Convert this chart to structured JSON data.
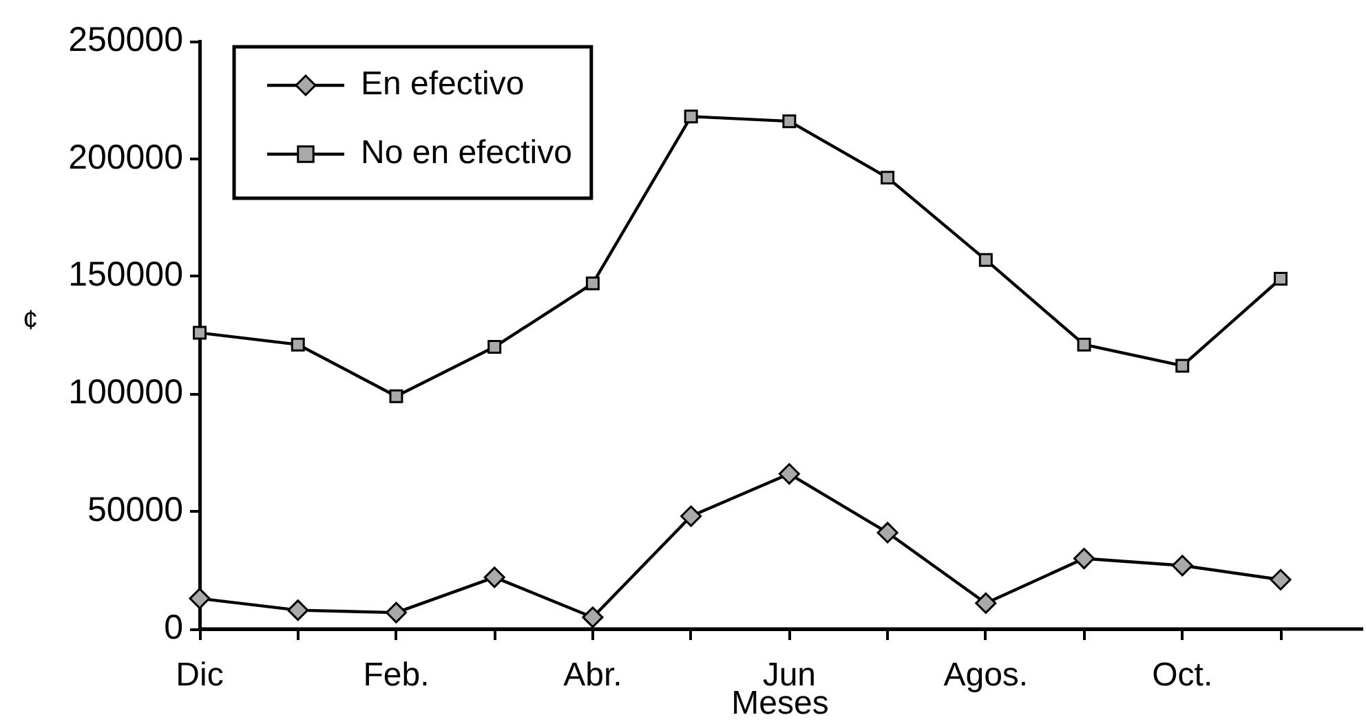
{
  "chart_data": {
    "type": "line",
    "xlabel": "Meses",
    "ylabel": "¢",
    "categories": [
      "Dic",
      null,
      "Feb.",
      null,
      "Abr.",
      null,
      "Jun",
      null,
      "Agos.",
      null,
      "Oct.",
      null
    ],
    "series": [
      {
        "name": "En efectivo",
        "color": "#000000",
        "marker": "diamond",
        "values": [
          13000,
          8000,
          7000,
          22000,
          5000,
          48000,
          66000,
          41000,
          11000,
          30000,
          27000,
          21000
        ]
      },
      {
        "name": "No en efectivo",
        "color": "#000000",
        "marker": "square",
        "values": [
          126000,
          121000,
          99000,
          120000,
          147000,
          218000,
          216000,
          192000,
          157000,
          121000,
          112000,
          149000
        ]
      }
    ],
    "ylim": [
      0,
      250000
    ],
    "yticks": [
      0,
      50000,
      100000,
      150000,
      200000,
      250000
    ],
    "legend": "top left"
  }
}
